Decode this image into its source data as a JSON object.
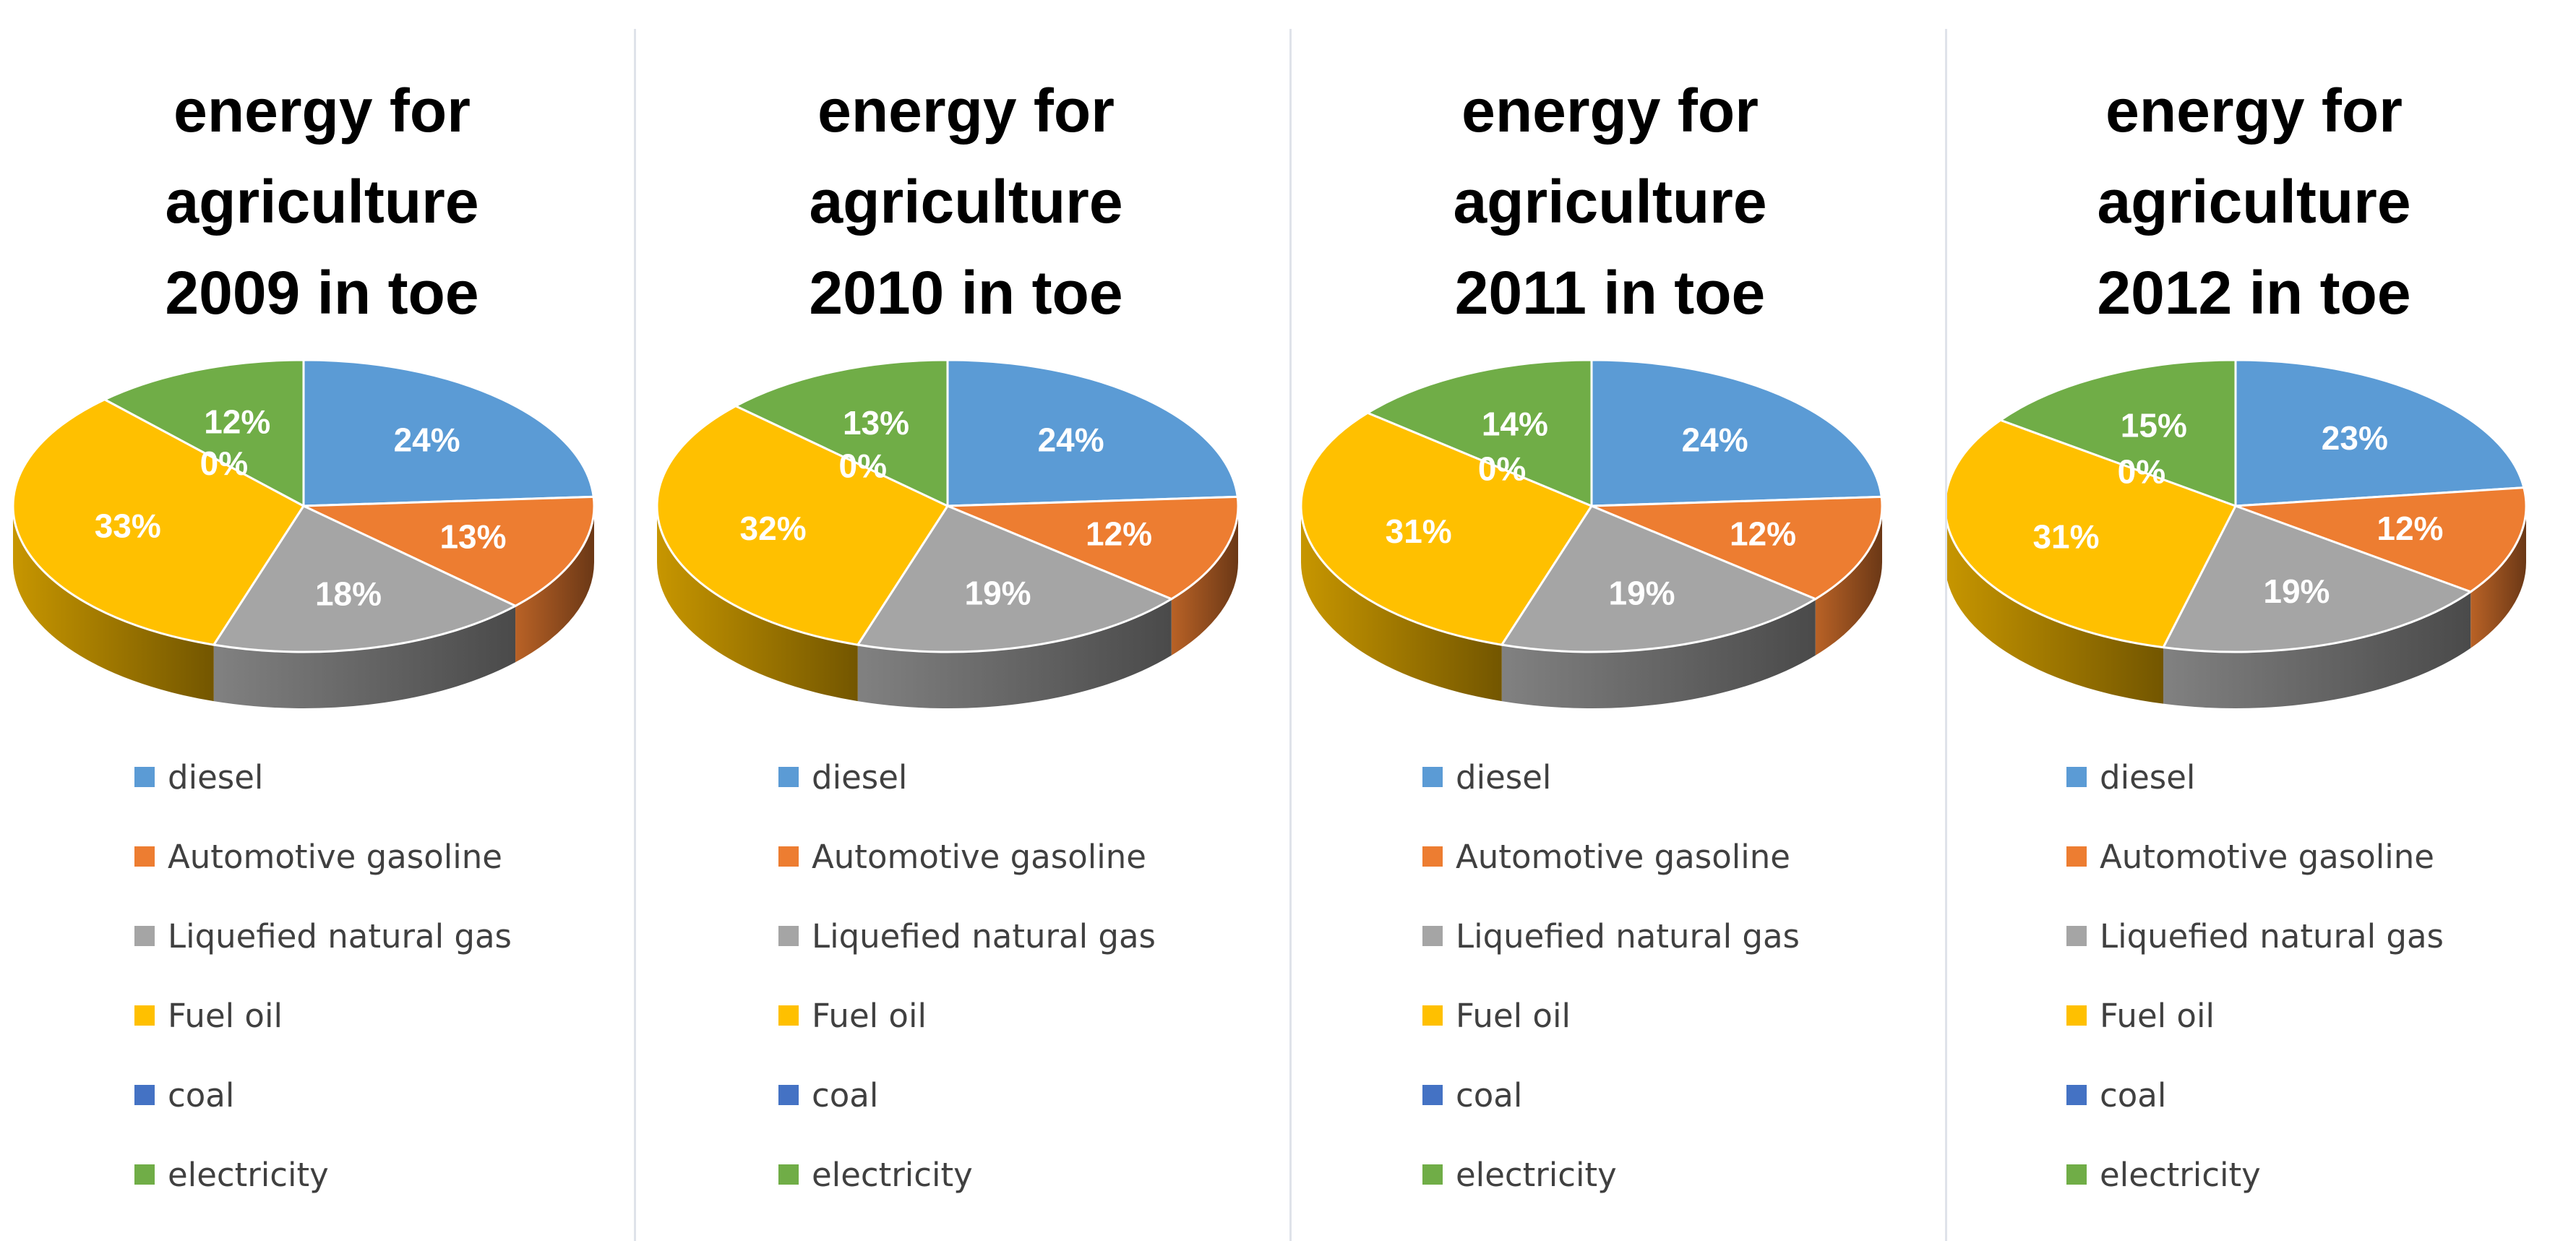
{
  "chart_data": [
    {
      "type": "pie",
      "title": "energy for agriculture 2009 in toe",
      "title_lines": [
        "energy for",
        "agriculture",
        "2009 in toe"
      ],
      "categories": [
        "diesel",
        "Automotive gasoline",
        "Liquefied natural gas",
        "Fuel oil",
        "coal",
        "electricity"
      ],
      "values": [
        24,
        13,
        18,
        33,
        0,
        12
      ],
      "labels": [
        "24%",
        "13%",
        "18%",
        "33%",
        "0%",
        "12%"
      ],
      "legend_position": "bottom"
    },
    {
      "type": "pie",
      "title": "energy for agriculture 2010 in toe",
      "title_lines": [
        "energy for",
        "agriculture",
        "2010 in toe"
      ],
      "categories": [
        "diesel",
        "Automotive gasoline",
        "Liquefied natural gas",
        "Fuel oil",
        "coal",
        "electricity"
      ],
      "values": [
        24,
        12,
        19,
        32,
        0,
        13
      ],
      "labels": [
        "24%",
        "12%",
        "19%",
        "32%",
        "0%",
        "13%"
      ],
      "legend_position": "bottom"
    },
    {
      "type": "pie",
      "title": "energy for agriculture 2011 in toe",
      "title_lines": [
        "energy for",
        "agriculture",
        "2011 in toe"
      ],
      "categories": [
        "diesel",
        "Automotive gasoline",
        "Liquefied natural gas",
        "Fuel oil",
        "coal",
        "electricity"
      ],
      "values": [
        24,
        12,
        19,
        31,
        0,
        14
      ],
      "labels": [
        "24%",
        "12%",
        "19%",
        "31%",
        "0%",
        "14%"
      ],
      "legend_position": "bottom"
    },
    {
      "type": "pie",
      "title": "energy for agriculture 2012 in toe",
      "title_lines": [
        "energy for",
        "agriculture",
        "2012 in toe"
      ],
      "categories": [
        "diesel",
        "Automotive gasoline",
        "Liquefied natural gas",
        "Fuel oil",
        "coal",
        "electricity"
      ],
      "values": [
        23,
        12,
        19,
        31,
        0,
        15
      ],
      "labels": [
        "23%",
        "12%",
        "19%",
        "31%",
        "0%",
        "15%"
      ],
      "legend_position": "bottom"
    }
  ],
  "colors": {
    "diesel": "#5b9bd5",
    "Automotive gasoline": "#ed7d31",
    "Liquefied natural gas": "#a5a5a5",
    "Fuel oil": "#ffc000",
    "coal": "#4472c4",
    "electricity": "#70ad47"
  }
}
